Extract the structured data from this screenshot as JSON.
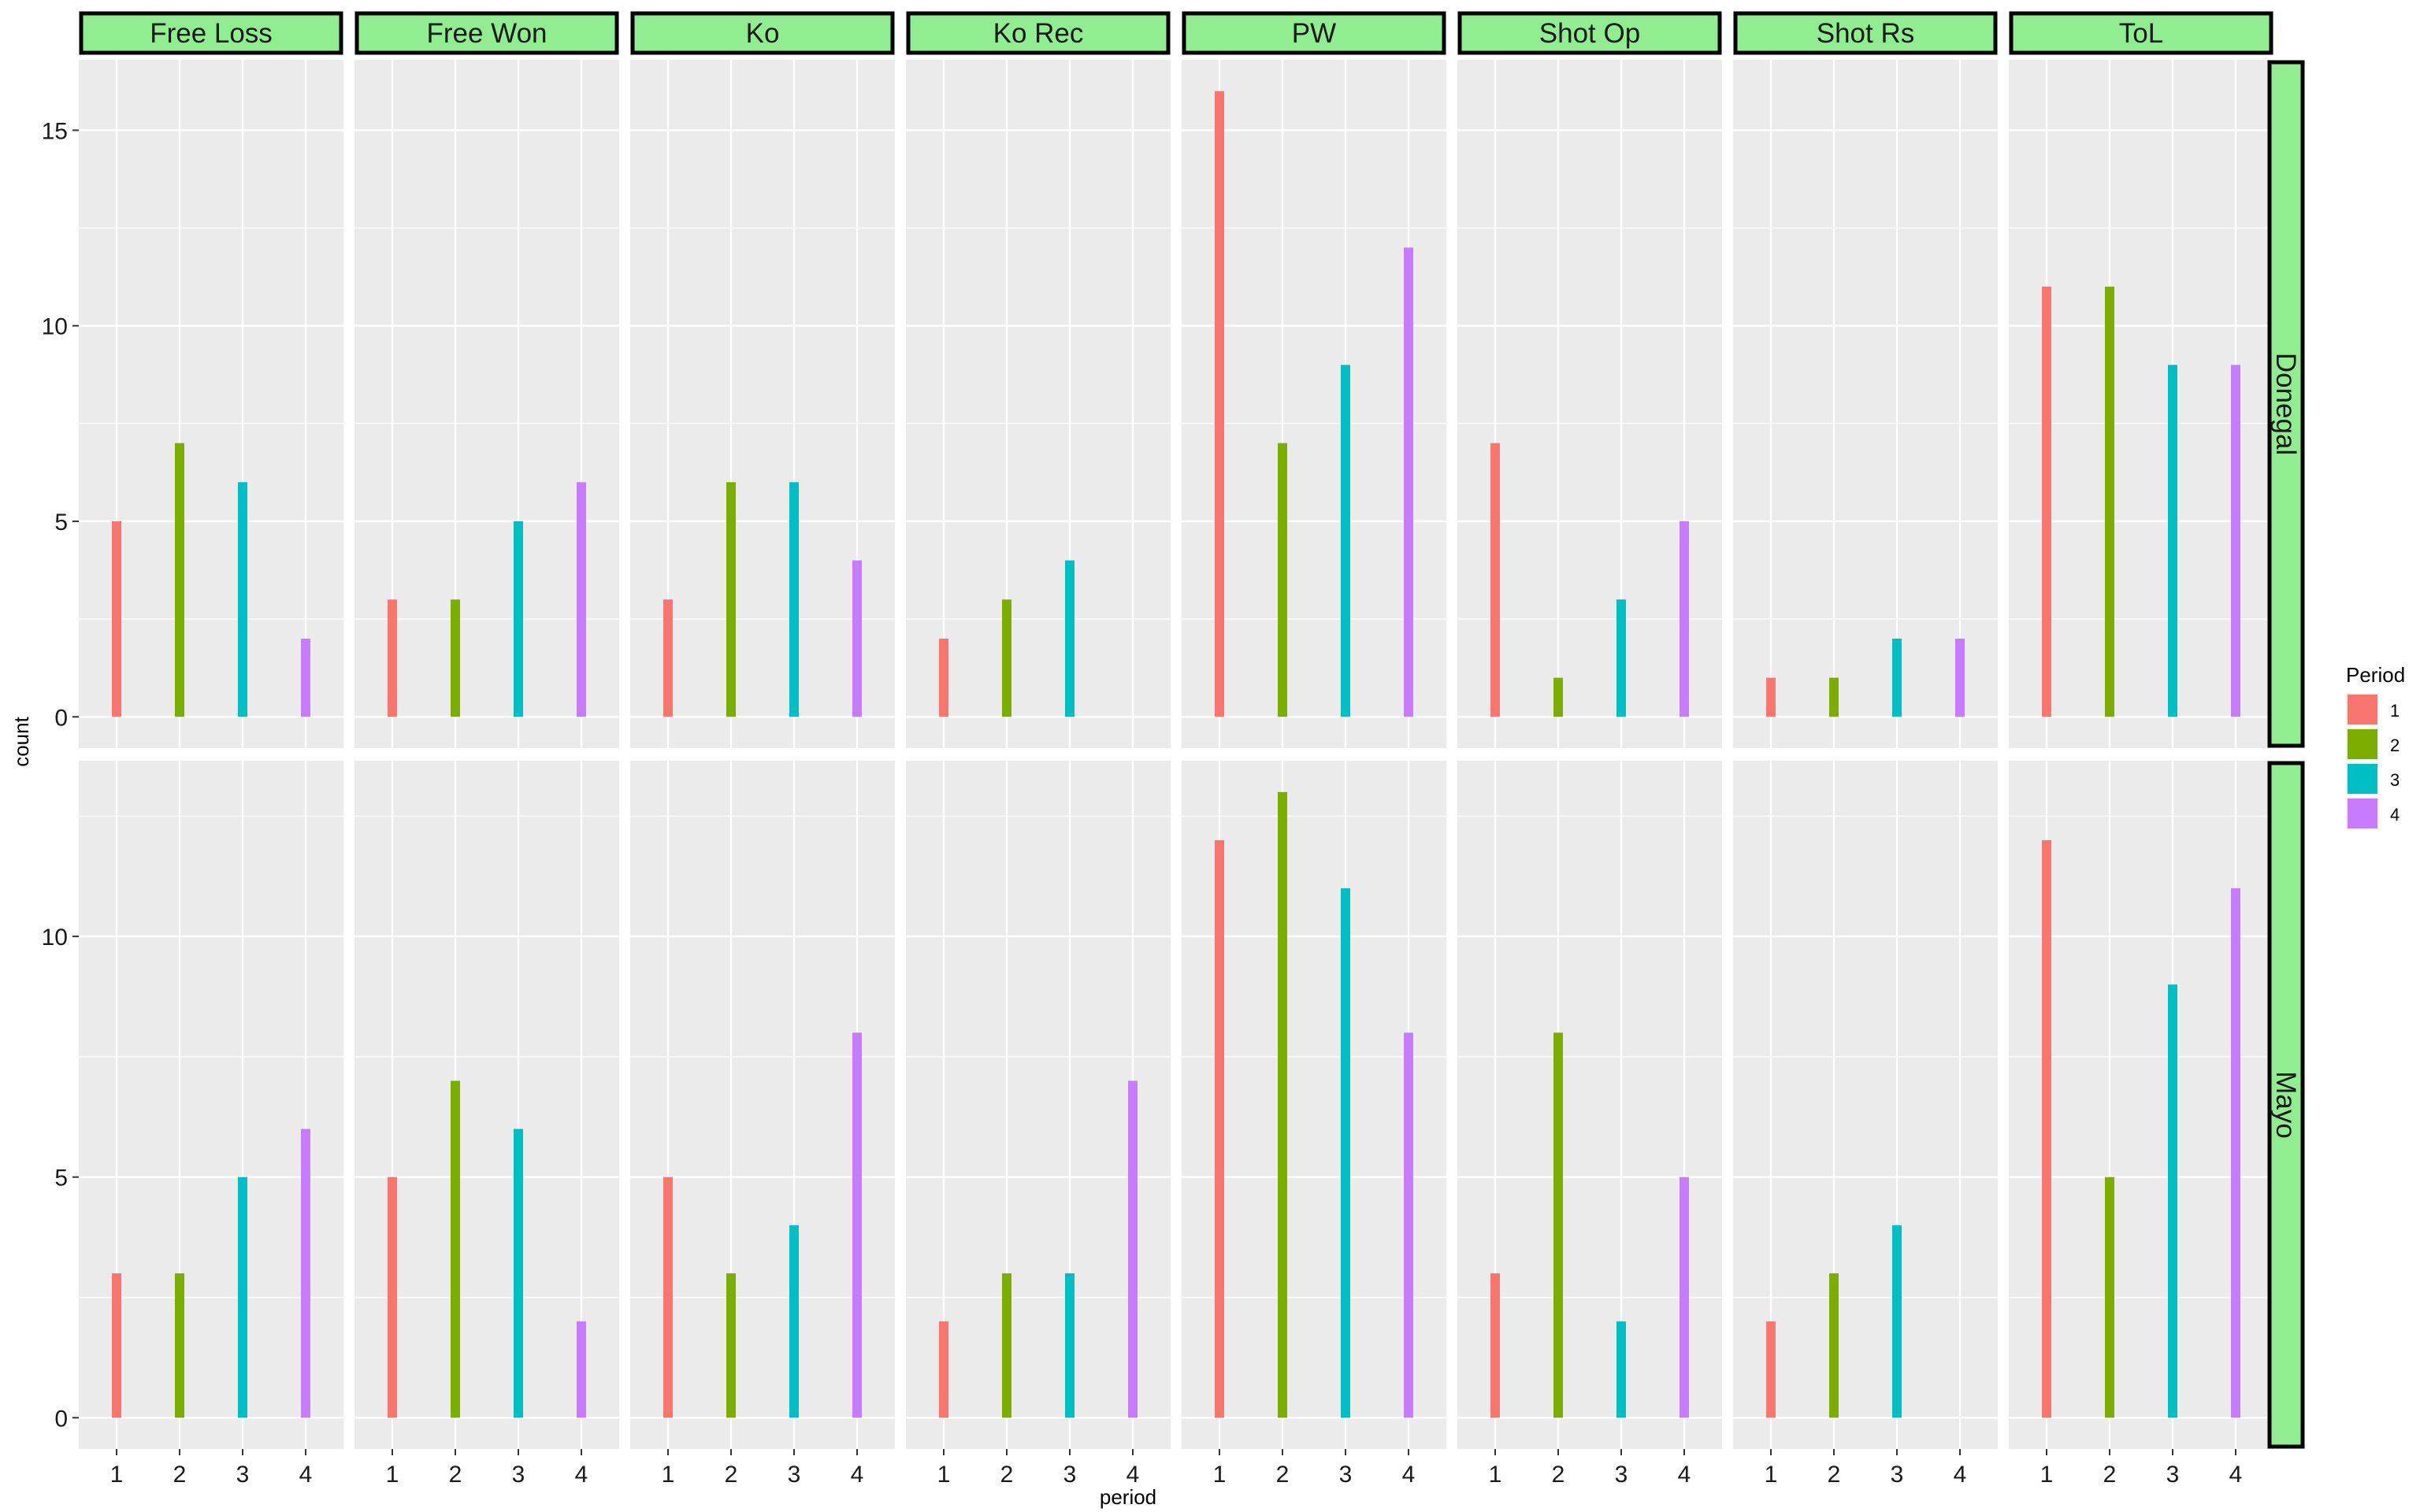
{
  "chart_data": {
    "type": "bar",
    "facet_columns": [
      "Free Loss",
      "Free Won",
      "Ko",
      "Ko Rec",
      "PW",
      "Shot Op",
      "Shot Rs",
      "ToL"
    ],
    "facet_rows": [
      "Donegal",
      "Mayo"
    ],
    "x_categories": [
      "1",
      "2",
      "3",
      "4"
    ],
    "xlabel": "period",
    "ylabel": "count",
    "legend": {
      "title": "Period",
      "position": "right",
      "entries": [
        {
          "label": "1",
          "color": "#F8766D"
        },
        {
          "label": "2",
          "color": "#7CAE00"
        },
        {
          "label": "3",
          "color": "#00BFC4"
        },
        {
          "label": "4",
          "color": "#C77CFF"
        }
      ]
    },
    "strip_fill": "#90EE90",
    "panel_background": "#EBEBEB",
    "grid": true,
    "rows": [
      {
        "name": "Donegal",
        "ylim": [
          -0.8,
          16.8
        ],
        "yticks": [
          0,
          5,
          10,
          15
        ],
        "values": [
          [
            5,
            7,
            6,
            2
          ],
          [
            3,
            3,
            5,
            6
          ],
          [
            3,
            6,
            6,
            4
          ],
          [
            2,
            3,
            4,
            0
          ],
          [
            16,
            7,
            9,
            12
          ],
          [
            7,
            1,
            3,
            5
          ],
          [
            1,
            1,
            2,
            2
          ],
          [
            11,
            11,
            9,
            9
          ]
        ]
      },
      {
        "name": "Mayo",
        "ylim": [
          -0.65,
          13.65
        ],
        "yticks": [
          0,
          5,
          10
        ],
        "values": [
          [
            3,
            3,
            5,
            6
          ],
          [
            5,
            7,
            6,
            2
          ],
          [
            5,
            3,
            4,
            8
          ],
          [
            2,
            3,
            3,
            7
          ],
          [
            12,
            13,
            11,
            8
          ],
          [
            3,
            8,
            2,
            5
          ],
          [
            2,
            3,
            4,
            0
          ],
          [
            12,
            5,
            9,
            11
          ]
        ]
      }
    ]
  }
}
